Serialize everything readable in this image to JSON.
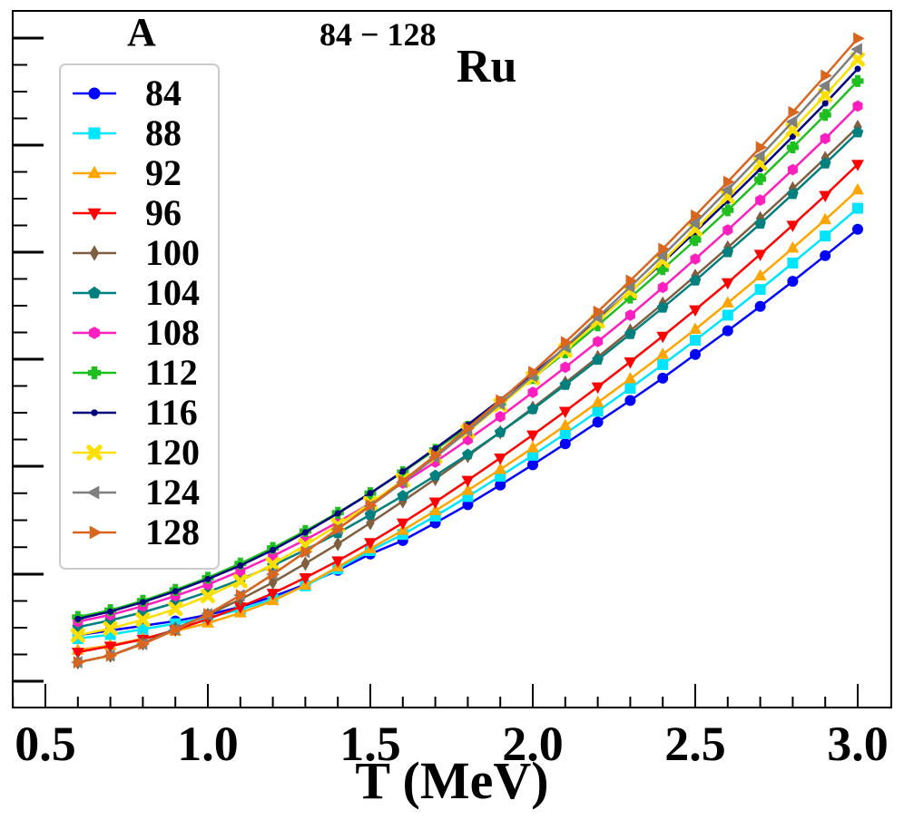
{
  "chart_data": {
    "type": "line",
    "title": "Ru",
    "title_superscript": "84 − 128",
    "panel_label": "A",
    "xlabel": "T (MeV)",
    "ylabel": "",
    "xlim": [
      0.4,
      3.05
    ],
    "ylim": [
      0.0,
      1.0
    ],
    "x_ticks": [
      0.5,
      1.0,
      1.5,
      2.0,
      2.5,
      3.0
    ],
    "x_tick_labels": [
      "0.5",
      "1.0",
      "1.5",
      "2.0",
      "2.5",
      "3.0"
    ],
    "y_tick_labels_visible": false,
    "legend_position": "top-left",
    "x": [
      0.6,
      0.7,
      0.8,
      0.9,
      1.0,
      1.1,
      1.2,
      1.3,
      1.4,
      1.5,
      1.6,
      1.7,
      1.8,
      1.9,
      2.0,
      2.1,
      2.2,
      2.3,
      2.4,
      2.5,
      2.6,
      2.7,
      2.8,
      2.9,
      3.0
    ],
    "series": [
      {
        "name": "84",
        "color": "#0000ff",
        "marker": "circle",
        "values": [
          0.08,
          0.087,
          0.094,
          0.101,
          0.11,
          0.122,
          0.137,
          0.155,
          0.176,
          0.2,
          0.22,
          0.246,
          0.273,
          0.302,
          0.332,
          0.363,
          0.395,
          0.427,
          0.46,
          0.495,
          0.53,
          0.566,
          0.603,
          0.641,
          0.68
        ]
      },
      {
        "name": "88",
        "color": "#00e5ff",
        "marker": "square",
        "values": [
          0.075,
          0.081,
          0.089,
          0.097,
          0.106,
          0.118,
          0.133,
          0.153,
          0.178,
          0.205,
          0.229,
          0.256,
          0.285,
          0.315,
          0.346,
          0.378,
          0.411,
          0.445,
          0.48,
          0.516,
          0.553,
          0.591,
          0.63,
          0.67,
          0.711
        ]
      },
      {
        "name": "92",
        "color": "#ffa500",
        "marker": "triangle-up",
        "values": [
          0.058,
          0.065,
          0.075,
          0.086,
          0.098,
          0.113,
          0.131,
          0.154,
          0.181,
          0.208,
          0.235,
          0.264,
          0.294,
          0.325,
          0.357,
          0.39,
          0.424,
          0.459,
          0.495,
          0.532,
          0.571,
          0.611,
          0.652,
          0.694,
          0.738
        ]
      },
      {
        "name": "96",
        "color": "#ff0000",
        "marker": "triangle-down",
        "values": [
          0.055,
          0.064,
          0.074,
          0.088,
          0.104,
          0.122,
          0.142,
          0.165,
          0.19,
          0.217,
          0.246,
          0.277,
          0.309,
          0.342,
          0.376,
          0.411,
          0.447,
          0.484,
          0.522,
          0.561,
          0.601,
          0.643,
          0.686,
          0.73,
          0.776
        ]
      },
      {
        "name": "100",
        "color": "#7f5f3f",
        "marker": "diamond",
        "values": [
          0.04,
          0.05,
          0.068,
          0.09,
          0.11,
          0.133,
          0.158,
          0.186,
          0.215,
          0.246,
          0.278,
          0.311,
          0.345,
          0.38,
          0.416,
          0.453,
          0.491,
          0.53,
          0.57,
          0.611,
          0.653,
          0.696,
          0.74,
          0.785,
          0.831
        ]
      },
      {
        "name": "104",
        "color": "#007f7f",
        "marker": "pentagon",
        "values": [
          0.092,
          0.102,
          0.114,
          0.128,
          0.144,
          0.162,
          0.183,
          0.206,
          0.231,
          0.258,
          0.286,
          0.316,
          0.347,
          0.38,
          0.414,
          0.45,
          0.487,
          0.525,
          0.564,
          0.604,
          0.646,
          0.688,
          0.732,
          0.777,
          0.823
        ]
      },
      {
        "name": "108",
        "color": "#ff1fbf",
        "marker": "hexagon",
        "values": [
          0.1,
          0.11,
          0.123,
          0.138,
          0.155,
          0.175,
          0.197,
          0.221,
          0.247,
          0.275,
          0.305,
          0.336,
          0.369,
          0.403,
          0.439,
          0.476,
          0.514,
          0.553,
          0.594,
          0.636,
          0.679,
          0.723,
          0.768,
          0.814,
          0.862
        ]
      },
      {
        "name": "112",
        "color": "#1fbf1f",
        "marker": "plus",
        "values": [
          0.107,
          0.117,
          0.131,
          0.147,
          0.165,
          0.186,
          0.209,
          0.234,
          0.261,
          0.29,
          0.321,
          0.354,
          0.388,
          0.423,
          0.46,
          0.498,
          0.538,
          0.579,
          0.621,
          0.664,
          0.708,
          0.754,
          0.801,
          0.849,
          0.899
        ]
      },
      {
        "name": "116",
        "color": "#00007f",
        "marker": "dot",
        "values": [
          0.104,
          0.115,
          0.129,
          0.145,
          0.163,
          0.183,
          0.206,
          0.232,
          0.26,
          0.29,
          0.322,
          0.356,
          0.391,
          0.428,
          0.466,
          0.505,
          0.546,
          0.588,
          0.631,
          0.676,
          0.722,
          0.769,
          0.817,
          0.866,
          0.917
        ]
      },
      {
        "name": "120",
        "color": "#ffdf00",
        "marker": "x-cross",
        "values": [
          0.08,
          0.09,
          0.103,
          0.119,
          0.138,
          0.16,
          0.185,
          0.213,
          0.243,
          0.275,
          0.309,
          0.344,
          0.381,
          0.42,
          0.46,
          0.501,
          0.544,
          0.588,
          0.633,
          0.68,
          0.728,
          0.777,
          0.827,
          0.878,
          0.931
        ]
      },
      {
        "name": "124",
        "color": "#7f7f7f",
        "marker": "triangle-left",
        "values": [
          0.04,
          0.05,
          0.067,
          0.088,
          0.111,
          0.139,
          0.17,
          0.203,
          0.237,
          0.271,
          0.306,
          0.343,
          0.382,
          0.422,
          0.463,
          0.506,
          0.55,
          0.595,
          0.641,
          0.689,
          0.738,
          0.788,
          0.839,
          0.892,
          0.946
        ]
      },
      {
        "name": "128",
        "color": "#d9661f",
        "marker": "triangle-right",
        "values": [
          0.04,
          0.05,
          0.067,
          0.088,
          0.111,
          0.139,
          0.17,
          0.203,
          0.237,
          0.272,
          0.308,
          0.346,
          0.386,
          0.427,
          0.469,
          0.513,
          0.558,
          0.604,
          0.651,
          0.7,
          0.75,
          0.801,
          0.853,
          0.907,
          0.962
        ]
      }
    ]
  }
}
